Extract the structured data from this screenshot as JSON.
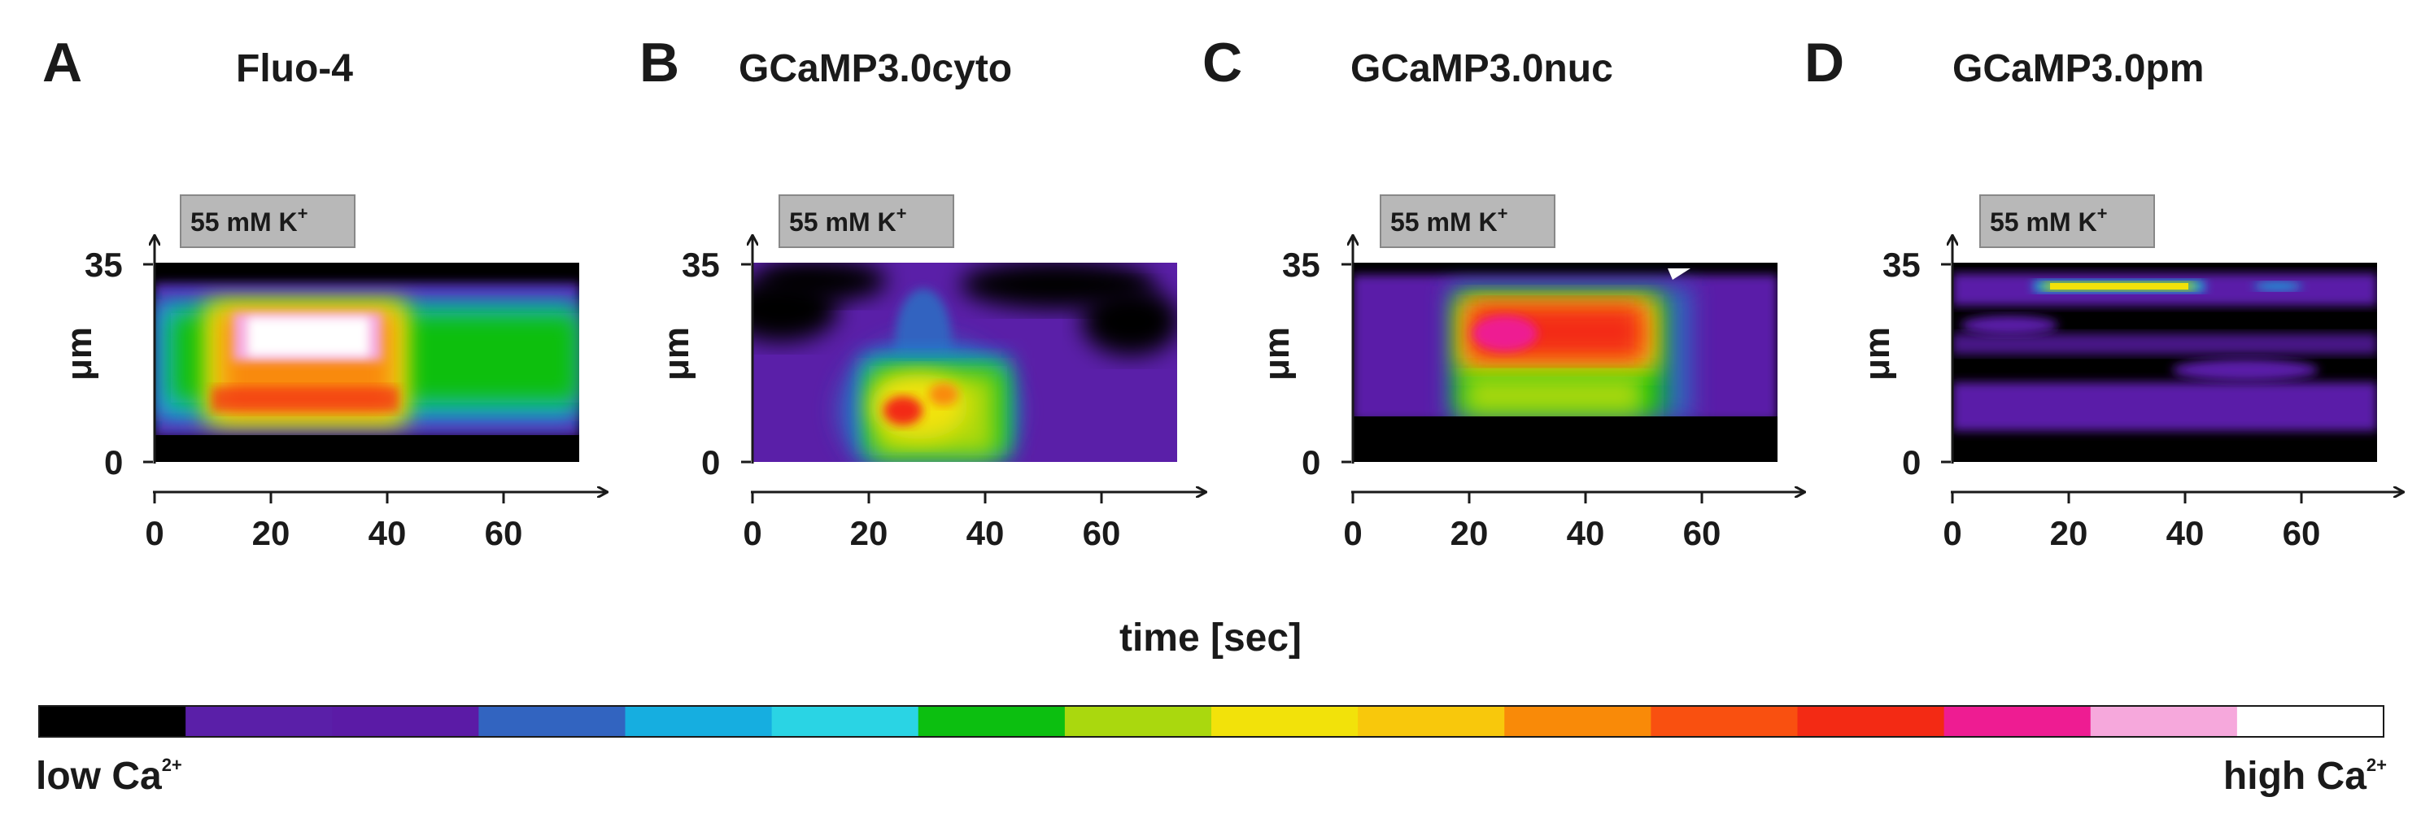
{
  "figure": {
    "x_label": "time [sec]",
    "colorbar": {
      "low_label": "low Ca",
      "high_label": "high Ca",
      "charge_superscript": "2+",
      "colors": [
        "#000000",
        "#5a1fa8",
        "#5b1ba6",
        "#3264c0",
        "#16aee0",
        "#2ad4e4",
        "#0cbf10",
        "#aad80e",
        "#f2e20a",
        "#f8c80c",
        "#f98a08",
        "#f95010",
        "#f32a14",
        "#ee1c92",
        "#f6a8dc",
        "#ffffff"
      ]
    },
    "panels": [
      {
        "letter": "A",
        "title": "Fluo-4",
        "stimulus": "55 mM K",
        "stimulus_superscript": "+",
        "y_label": "μm",
        "y_ticks": [
          "35",
          "0"
        ],
        "x_ticks": [
          "0",
          "20",
          "40",
          "60"
        ],
        "response_window_sec": [
          10,
          44
        ],
        "x_range": [
          0,
          75
        ],
        "y_range_um": [
          0,
          35
        ]
      },
      {
        "letter": "B",
        "title": "GCaMP3.0cyto",
        "stimulus": "55 mM K",
        "stimulus_superscript": "+",
        "y_label": "μm",
        "y_ticks": [
          "35",
          "0"
        ],
        "x_ticks": [
          "0",
          "20",
          "40",
          "60"
        ],
        "response_window_sec": [
          18,
          46
        ],
        "x_range": [
          0,
          75
        ],
        "y_range_um": [
          0,
          35
        ]
      },
      {
        "letter": "C",
        "title": "GCaMP3.0nuc",
        "stimulus": "55 mM K",
        "stimulus_superscript": "+",
        "y_label": "μm",
        "y_ticks": [
          "35",
          "0"
        ],
        "x_ticks": [
          "0",
          "20",
          "40",
          "60"
        ],
        "response_window_sec": [
          18,
          54
        ],
        "x_range": [
          0,
          75
        ],
        "y_range_um": [
          0,
          35
        ]
      },
      {
        "letter": "D",
        "title": "GCaMP3.0pm",
        "stimulus": "55 mM K",
        "stimulus_superscript": "+",
        "y_label": "μm",
        "y_ticks": [
          "35",
          "0"
        ],
        "x_ticks": [
          "0",
          "20",
          "40",
          "60"
        ],
        "response_window_sec": [
          16,
          42
        ],
        "x_range": [
          0,
          75
        ],
        "y_range_um": [
          0,
          35
        ]
      }
    ]
  }
}
